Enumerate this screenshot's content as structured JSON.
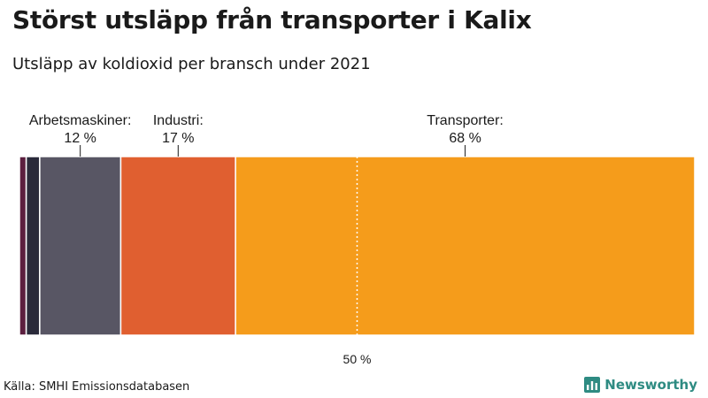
{
  "chart_data": {
    "type": "bar",
    "orientation": "horizontal-stacked",
    "title": "Störst utsläpp från transporter i Kalix",
    "subtitle": "Utsläpp av koldioxid per bransch under 2021",
    "xlim": [
      0,
      100
    ],
    "segments": [
      {
        "value": 1,
        "color": "#5c1f3f"
      },
      {
        "value": 2,
        "color": "#2a2a3a"
      },
      {
        "category": "Arbetsmaskiner:",
        "value": 12,
        "value_label": "12 %",
        "color": "#585664"
      },
      {
        "category": "Industri:",
        "value": 17,
        "value_label": "17 %",
        "color": "#e05f30"
      },
      {
        "category": "Transporter:",
        "value": 68,
        "value_label": "68 %",
        "color": "#f59c1b"
      }
    ],
    "reference_line": {
      "value": 50,
      "label": "50 %"
    }
  },
  "footer": {
    "source": "Källa: SMHI Emissionsdatabasen",
    "brand": "Newsworthy",
    "brand_color": "#2e8b82",
    "brand_icon": "bar-chart-icon"
  }
}
